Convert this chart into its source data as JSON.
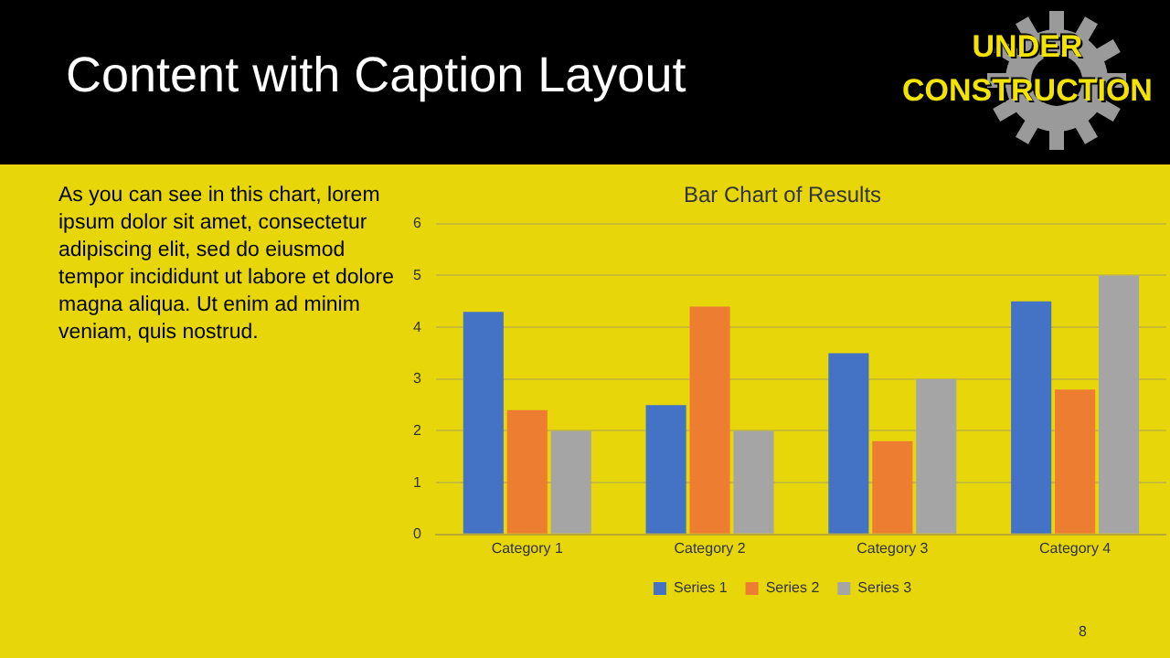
{
  "chart_data": {
    "type": "bar",
    "title": "Bar Chart of Results",
    "categories": [
      "Category 1",
      "Category 2",
      "Category 3",
      "Category 4"
    ],
    "series": [
      {
        "name": "Series 1",
        "color": "#4472c4",
        "values": [
          4.3,
          2.5,
          3.5,
          4.5
        ]
      },
      {
        "name": "Series 2",
        "color": "#ed7d31",
        "values": [
          2.4,
          4.4,
          1.8,
          2.8
        ]
      },
      {
        "name": "Series 3",
        "color": "#a5a5a5",
        "values": [
          2,
          2,
          3,
          5
        ]
      }
    ],
    "ylim": [
      0,
      6
    ],
    "yticks": [
      0,
      1,
      2,
      3,
      4,
      5,
      6
    ],
    "grid": "y",
    "legend": "bottom",
    "annotations": [
      "Content with Caption Layout",
      "As you can see in this chart, lorem ipsum dolor sit amet, consectetur adipiscing elit, sed do eiusmod tempor incididunt ut labore et dolore magna aliqua. Ut enim ad minim veniam, quis nostrud.",
      "UNDER CONSTRUCTION",
      "8"
    ]
  }
}
